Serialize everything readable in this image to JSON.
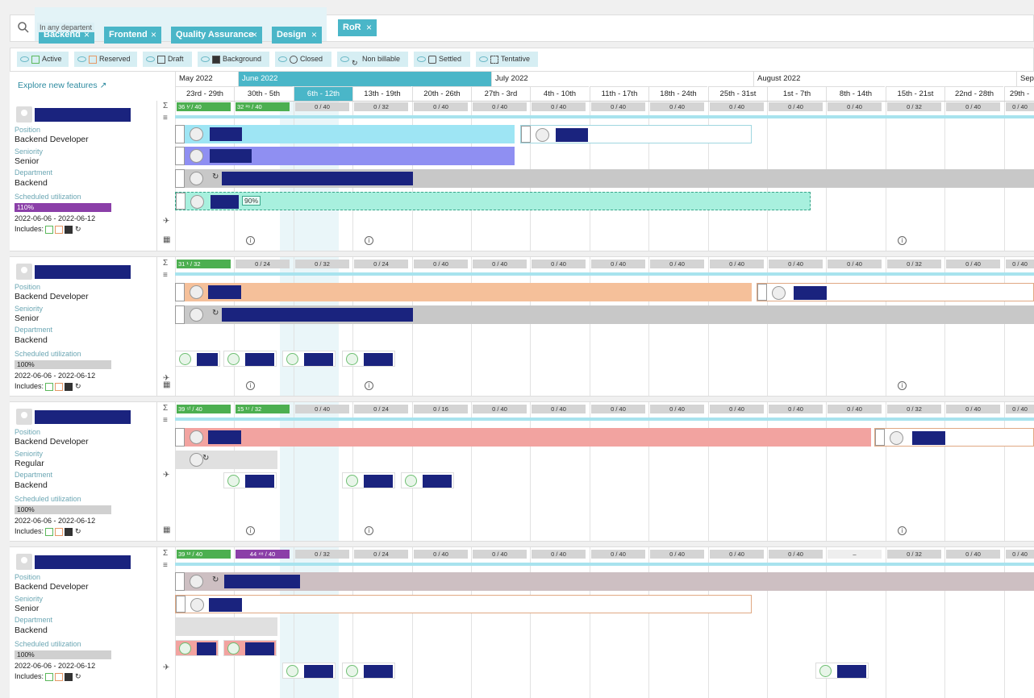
{
  "filters": {
    "group_label": "In any departent",
    "departments": [
      {
        "label": "Backend"
      },
      {
        "label": "Frontend"
      },
      {
        "label": "Quality Assurance"
      },
      {
        "label": "Design"
      }
    ],
    "extra": {
      "label": "RoR"
    },
    "remove_glyph": "×"
  },
  "legend": [
    {
      "label": "Active"
    },
    {
      "label": "Reserved"
    },
    {
      "label": "Draft"
    },
    {
      "label": "Background"
    },
    {
      "label": "Closed"
    },
    {
      "label": "Non billable"
    },
    {
      "label": "Settled"
    },
    {
      "label": "Tentative"
    }
  ],
  "explore_link": "Explore new features",
  "months": [
    {
      "label": "May 2022"
    },
    {
      "label": "June 2022"
    },
    {
      "label": "July 2022"
    },
    {
      "label": "August 2022"
    },
    {
      "label": "Sept"
    }
  ],
  "weeks": [
    "23rd - 29th",
    "30th - 5th",
    "6th - 12th",
    "13th - 19th",
    "20th - 26th",
    "27th - 3rd",
    "4th - 10th",
    "11th - 17th",
    "18th - 24th",
    "25th - 31st",
    "1st - 7th",
    "8th - 14th",
    "15th - 21st",
    "22nd - 28th",
    "29th - 4th"
  ],
  "field_labels": {
    "position": "Position",
    "seniority": "Seniority",
    "department": "Department",
    "scheduled": "Scheduled utilization",
    "includes": "Includes:"
  },
  "people": [
    {
      "position": "Backend Developer",
      "seniority": "Senior",
      "department": "Backend",
      "utilization": "110%",
      "utilization_value": 1.1,
      "dates": "2022-06-06 - 2022-06-12",
      "capacity": [
        "36 ¹⁄ / 40",
        "32 ²⁸ / 40",
        "0 / 40",
        "0 / 32",
        "0 / 40",
        "0 / 40",
        "0 / 40",
        "0 / 40",
        "0 / 40",
        "0 / 40",
        "0 / 40",
        "0 / 40",
        "0 / 32",
        "0 / 40",
        "0 / 40"
      ],
      "tentative_pct": "90%"
    },
    {
      "position": "Backend Developer",
      "seniority": "Senior",
      "department": "Backend",
      "utilization": "100%",
      "utilization_value": 1.0,
      "dates": "2022-06-06 - 2022-06-12",
      "capacity": [
        "31 ¹ / 32",
        "0 / 24",
        "0 / 32",
        "0 / 24",
        "0 / 40",
        "0 / 40",
        "0 / 40",
        "0 / 40",
        "0 / 40",
        "0 / 40",
        "0 / 40",
        "0 / 40",
        "0 / 32",
        "0 / 40",
        "0 / 40"
      ]
    },
    {
      "position": "Backend Developer",
      "seniority": "Regular",
      "department": "Backend",
      "utilization": "100%",
      "utilization_value": 1.0,
      "dates": "2022-06-06 - 2022-06-12",
      "capacity": [
        "39 ⁵ᶠ / 40",
        "15 ¹⁷ / 32",
        "0 / 40",
        "0 / 24",
        "0 / 16",
        "0 / 40",
        "0 / 40",
        "0 / 40",
        "0 / 40",
        "0 / 40",
        "0 / 40",
        "0 / 40",
        "0 / 32",
        "0 / 40",
        "0 / 40"
      ]
    },
    {
      "position": "Backend Developer",
      "seniority": "Senior",
      "department": "Backend",
      "utilization": "100%",
      "utilization_value": 1.0,
      "dates": "2022-06-06 - 2022-06-12",
      "capacity": [
        "39 ¹² / 40",
        "44 ⁴⁸ / 40",
        "0 / 32",
        "0 / 24",
        "0 / 40",
        "0 / 40",
        "0 / 40",
        "0 / 40",
        "0 / 40",
        "0 / 40",
        "0 / 40",
        "–",
        "0 / 32",
        "0 / 40",
        "0 / 40"
      ]
    }
  ],
  "colors": {
    "accent": "#4ab6c8",
    "name_block": "#1a237e",
    "overutil": "#8b3fa8"
  }
}
